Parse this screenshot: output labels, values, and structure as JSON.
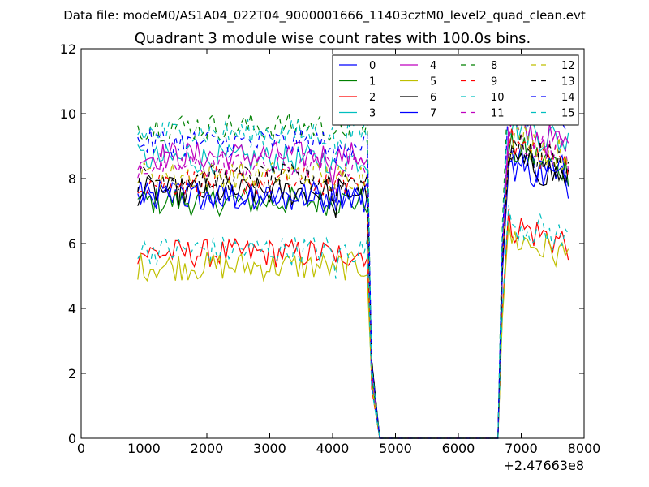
{
  "figure": {
    "suptitle": "Data file: modeM0/AS1A04_022T04_9000001666_11403cztM0_level2_quad_clean.evt",
    "title": "Quadrant 3 module wise count rates with 100.0s bins.",
    "x_offset_label": "+2.47663e8"
  },
  "chart_data": {
    "type": "line",
    "title": "Quadrant 3 module wise count rates with 100.0s bins.",
    "xlabel": "",
    "ylabel": "",
    "xlim": [
      0,
      8000
    ],
    "ylim": [
      0,
      12
    ],
    "x_offset": "+2.47663e8",
    "x_ticks": [
      0,
      1000,
      2000,
      3000,
      4000,
      5000,
      6000,
      7000,
      8000
    ],
    "x_tick_labels": [
      "0",
      "1000",
      "2000",
      "3000",
      "4000",
      "5000",
      "6000",
      "7000",
      "8000"
    ],
    "y_ticks": [
      0,
      2,
      4,
      6,
      8,
      10,
      12
    ],
    "y_tick_labels": [
      "0",
      "2",
      "4",
      "6",
      "8",
      "10",
      "12"
    ],
    "grid": false,
    "legend_placement": "upper-right",
    "legend_columns": 4,
    "series": [
      {
        "name": "0",
        "color": "#0000ff",
        "dash": "solid",
        "pre_level": 7.4,
        "post_level": 8.7
      },
      {
        "name": "1",
        "color": "#008000",
        "dash": "solid",
        "pre_level": 7.3,
        "post_level": 8.9
      },
      {
        "name": "2",
        "color": "#ff0000",
        "dash": "solid",
        "pre_level": 5.7,
        "post_level": 6.6
      },
      {
        "name": "3",
        "color": "#00bfbf",
        "dash": "solid",
        "pre_level": 8.6,
        "post_level": 9.7
      },
      {
        "name": "4",
        "color": "#bf00bf",
        "dash": "solid",
        "pre_level": 8.7,
        "post_level": 9.6
      },
      {
        "name": "5",
        "color": "#bfbf00",
        "dash": "solid",
        "pre_level": 5.3,
        "post_level": 6.2
      },
      {
        "name": "6",
        "color": "#000000",
        "dash": "solid",
        "pre_level": 7.6,
        "post_level": 8.6
      },
      {
        "name": "7",
        "color": "#0000ff",
        "dash": "solid",
        "pre_level": 7.5,
        "post_level": 8.5
      },
      {
        "name": "8",
        "color": "#008000",
        "dash": "dashed",
        "pre_level": 9.6,
        "post_level": 11.0
      },
      {
        "name": "9",
        "color": "#ff0000",
        "dash": "dashed",
        "pre_level": 7.9,
        "post_level": 9.1
      },
      {
        "name": "10",
        "color": "#00bfbf",
        "dash": "dashed",
        "pre_level": 5.8,
        "post_level": 6.7
      },
      {
        "name": "11",
        "color": "#bf00bf",
        "dash": "dashed",
        "pre_level": 8.4,
        "post_level": 9.4
      },
      {
        "name": "12",
        "color": "#bfbf00",
        "dash": "dashed",
        "pre_level": 8.1,
        "post_level": 9.3
      },
      {
        "name": "13",
        "color": "#000000",
        "dash": "dashed",
        "pre_level": 8.0,
        "post_level": 9.0
      },
      {
        "name": "14",
        "color": "#0000ff",
        "dash": "dashed",
        "pre_level": 9.1,
        "post_level": 10.2
      },
      {
        "name": "15",
        "color": "#00bfbf",
        "dash": "dashed",
        "pre_level": 9.4,
        "post_level": 10.6
      }
    ],
    "x_range_active_1": [
      900,
      4550
    ],
    "x_range_zero": [
      4750,
      6630
    ],
    "x_range_active_2": [
      6800,
      7750
    ]
  }
}
